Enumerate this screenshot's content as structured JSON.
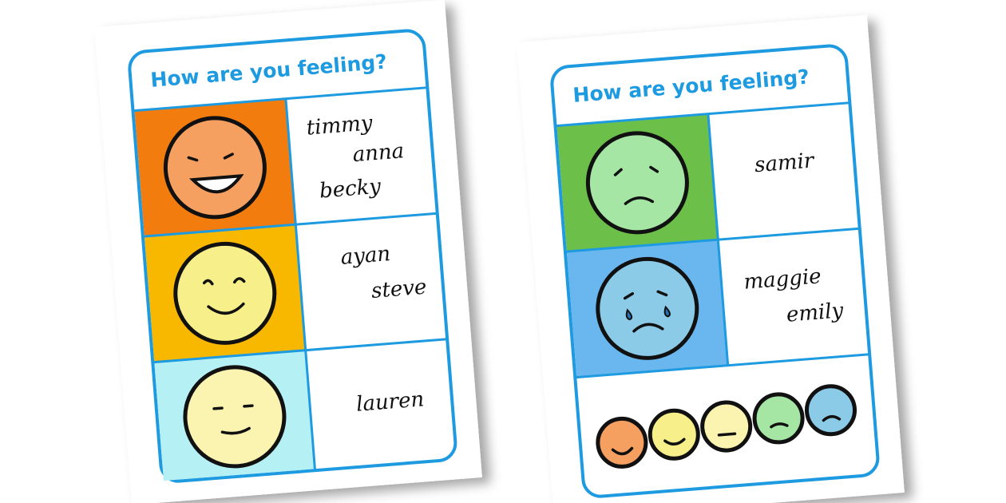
{
  "sheets": [
    {
      "title": "How are you feeling?",
      "rows": [
        {
          "names": [
            "timmy",
            "anna",
            "becky"
          ]
        },
        {
          "names": [
            "ayan",
            "steve"
          ]
        },
        {
          "names": [
            "lauren"
          ]
        }
      ]
    },
    {
      "title": "How are you feeling?",
      "rows": [
        {
          "names": [
            "samir"
          ]
        },
        {
          "names": [
            "maggie",
            "emily"
          ]
        }
      ]
    }
  ]
}
